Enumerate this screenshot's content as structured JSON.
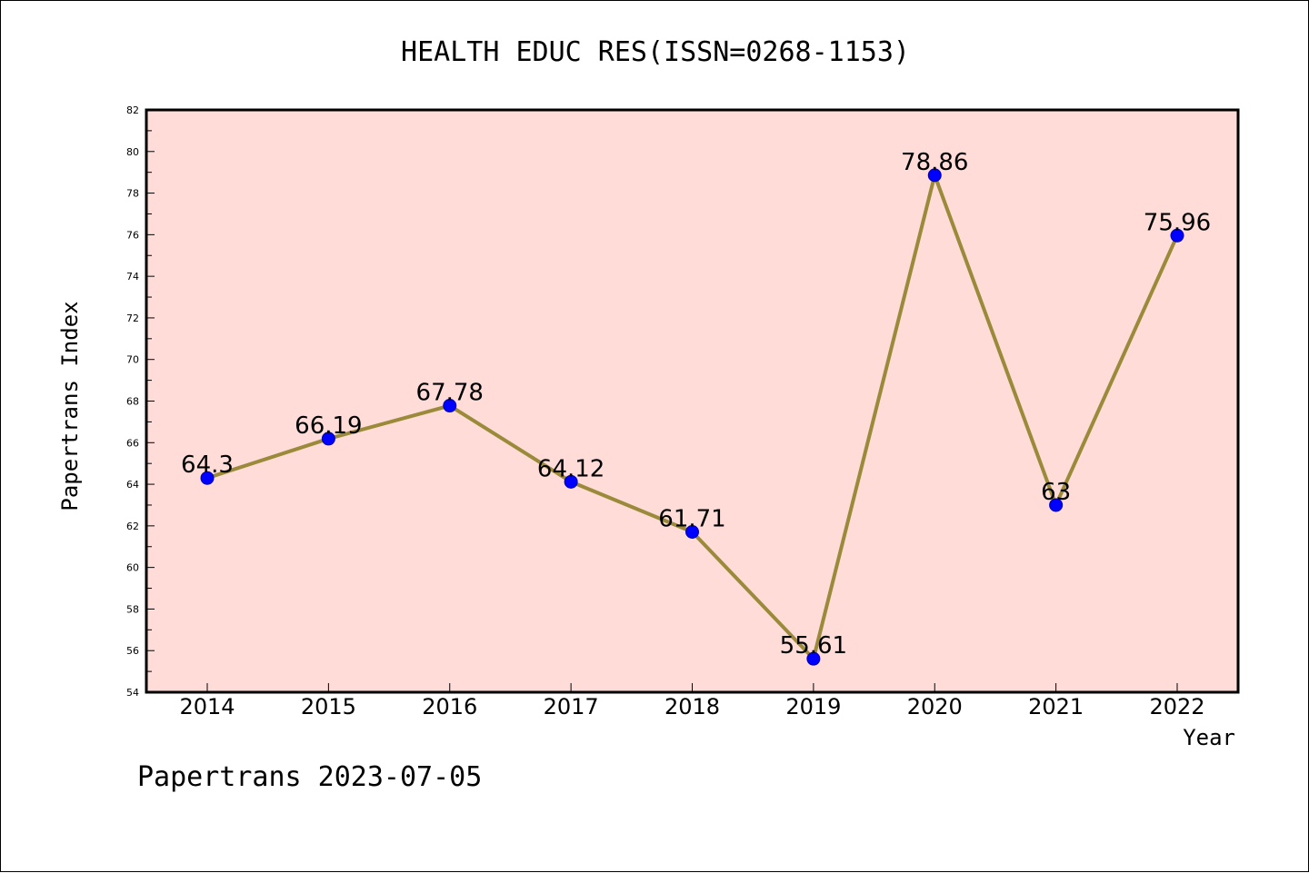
{
  "chart_data": {
    "type": "line",
    "title": "HEALTH EDUC RES(ISSN=0268-1153)",
    "xlabel": "Year",
    "ylabel": "Papertrans Index",
    "categories": [
      "2014",
      "2015",
      "2016",
      "2017",
      "2018",
      "2019",
      "2020",
      "2021",
      "2022"
    ],
    "values": [
      64.3,
      66.19,
      67.78,
      64.12,
      61.71,
      55.61,
      78.86,
      63,
      75.96
    ],
    "data_labels": [
      "64.3",
      "66.19",
      "67.78",
      "64.12",
      "61.71",
      "55.61",
      "78.86",
      "63",
      "75.96"
    ],
    "ylim": [
      54,
      82
    ],
    "yticks": [
      "54",
      "56",
      "58",
      "60",
      "62",
      "64",
      "66",
      "68",
      "70",
      "72",
      "74",
      "76",
      "78",
      "80",
      "82"
    ],
    "grid": false,
    "colors": {
      "plot_background": "#ffdcd8",
      "line": "#9a8a3a",
      "marker": "#0000ff",
      "marker_edge": "#0000aa"
    }
  },
  "footer": "Papertrans 2023-07-05"
}
